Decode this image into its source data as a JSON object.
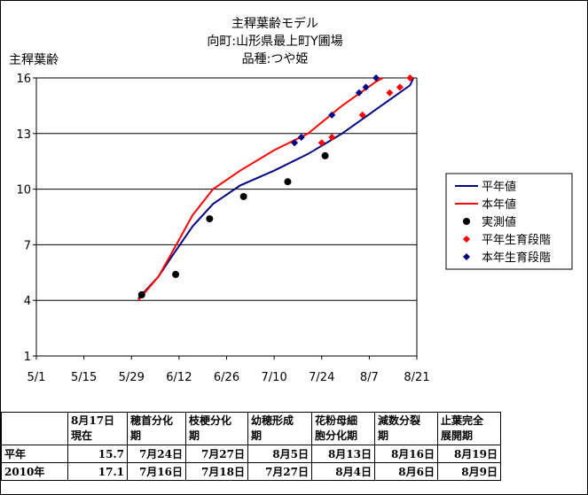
{
  "title_lines": [
    "主稈葉齢モデル",
    "向町:山形県最上町Y圃場",
    "品種:つや姫"
  ],
  "chart_data": {
    "type": "line",
    "ylabel": "主稈葉齢",
    "ylim": [
      1,
      16
    ],
    "yticks": [
      1,
      4,
      7,
      10,
      13,
      16
    ],
    "xlim_day": [
      0,
      112
    ],
    "xticks": [
      {
        "day": 0,
        "label": "5/1"
      },
      {
        "day": 14,
        "label": "5/15"
      },
      {
        "day": 28,
        "label": "5/29"
      },
      {
        "day": 42,
        "label": "6/12"
      },
      {
        "day": 56,
        "label": "6/26"
      },
      {
        "day": 70,
        "label": "7/10"
      },
      {
        "day": 84,
        "label": "7/24"
      },
      {
        "day": 98,
        "label": "8/7"
      },
      {
        "day": 112,
        "label": "8/21"
      }
    ],
    "grid": true,
    "legend_position": "right",
    "series": [
      {
        "name": "平年値",
        "kind": "line",
        "color": "#000080",
        "points": [
          [
            30,
            4.1
          ],
          [
            36,
            5.3
          ],
          [
            40,
            6.4
          ],
          [
            46,
            8.0
          ],
          [
            52,
            9.2
          ],
          [
            60,
            10.2
          ],
          [
            70,
            11.0
          ],
          [
            80,
            11.9
          ],
          [
            90,
            13.0
          ],
          [
            100,
            14.3
          ],
          [
            110,
            15.6
          ],
          [
            111,
            16.0
          ]
        ]
      },
      {
        "name": "本年値",
        "kind": "line",
        "color": "#ff0000",
        "points": [
          [
            30,
            4.0
          ],
          [
            36,
            5.3
          ],
          [
            40,
            6.6
          ],
          [
            46,
            8.6
          ],
          [
            52,
            10.0
          ],
          [
            60,
            11.0
          ],
          [
            70,
            12.1
          ],
          [
            80,
            13.0
          ],
          [
            90,
            14.5
          ],
          [
            100,
            15.8
          ],
          [
            102,
            16.0
          ]
        ]
      },
      {
        "name": "実測値",
        "kind": "points",
        "color": "#000000",
        "points": [
          [
            31,
            4.3
          ],
          [
            41,
            5.4
          ],
          [
            51,
            8.4
          ],
          [
            61,
            9.6
          ],
          [
            74,
            10.4
          ],
          [
            85,
            11.8
          ]
        ]
      },
      {
        "name": "平年生育段階",
        "kind": "points",
        "color": "#ff0000",
        "points": [
          [
            84,
            12.5
          ],
          [
            87,
            12.8
          ],
          [
            96,
            14.0
          ],
          [
            104,
            15.2
          ],
          [
            107,
            15.5
          ],
          [
            110,
            16.0
          ]
        ]
      },
      {
        "name": "本年生育段階",
        "kind": "points",
        "color": "#000080",
        "points": [
          [
            76,
            12.5
          ],
          [
            78,
            12.8
          ],
          [
            87,
            14.0
          ],
          [
            95,
            15.2
          ],
          [
            97,
            15.5
          ],
          [
            100,
            16.0
          ]
        ]
      }
    ]
  },
  "table": {
    "header": [
      "",
      "8月17日 現在",
      "穂首分化 期",
      "枝梗分化 期",
      "幼穂形成 期",
      "花粉母細 胞分化期",
      "減数分裂 期",
      "止葉完全 展開期"
    ],
    "rows": [
      [
        "平年",
        "15.7",
        "7月24日",
        "7月27日",
        "8月5日",
        "8月13日",
        "8月16日",
        "8月19日"
      ],
      [
        "2010年",
        "17.1",
        "7月16日",
        "7月18日",
        "7月27日",
        "8月4日",
        "8月6日",
        "8月9日"
      ]
    ]
  }
}
